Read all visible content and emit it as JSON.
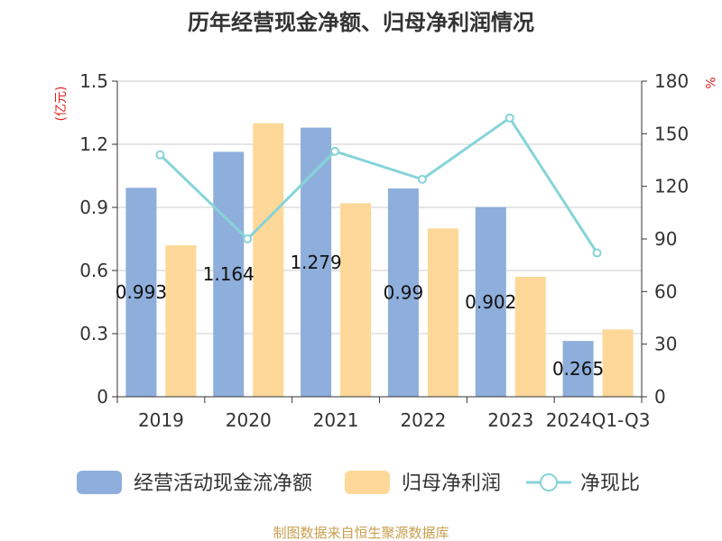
{
  "chart_data": {
    "type": "bar",
    "title": "历年经营现金净额、归母净利润情况",
    "categories": [
      "2019",
      "2020",
      "2021",
      "2022",
      "2023",
      "2024Q1-Q3"
    ],
    "y_left": {
      "unit": "(亿元)",
      "range": [
        0,
        1.5
      ],
      "ticks": [
        "0",
        "0.3",
        "0.6",
        "0.9",
        "1.2",
        "1.5"
      ]
    },
    "y_right": {
      "unit": "%",
      "range": [
        0,
        180
      ],
      "ticks": [
        "0",
        "30",
        "60",
        "90",
        "120",
        "150",
        "180"
      ]
    },
    "grid": true,
    "legend_position": "bottom",
    "series": [
      {
        "name": "经营活动现金流净额",
        "type": "bar",
        "axis": "left",
        "color": "#8eaedb",
        "values": [
          0.993,
          1.164,
          1.279,
          0.99,
          0.902,
          0.265
        ],
        "labels": [
          "0.993",
          "1.164",
          "1.279",
          "0.99",
          "0.902",
          "0.265"
        ]
      },
      {
        "name": "归母净利润",
        "type": "bar",
        "axis": "left",
        "color": "#fdd898",
        "values": [
          0.72,
          1.3,
          0.92,
          0.8,
          0.57,
          0.32
        ]
      },
      {
        "name": "净现比",
        "type": "line",
        "axis": "right",
        "color": "#85d4d9",
        "values": [
          138,
          90,
          140,
          124,
          159,
          82
        ]
      }
    ],
    "source": "制图数据来自恒生聚源数据库"
  }
}
